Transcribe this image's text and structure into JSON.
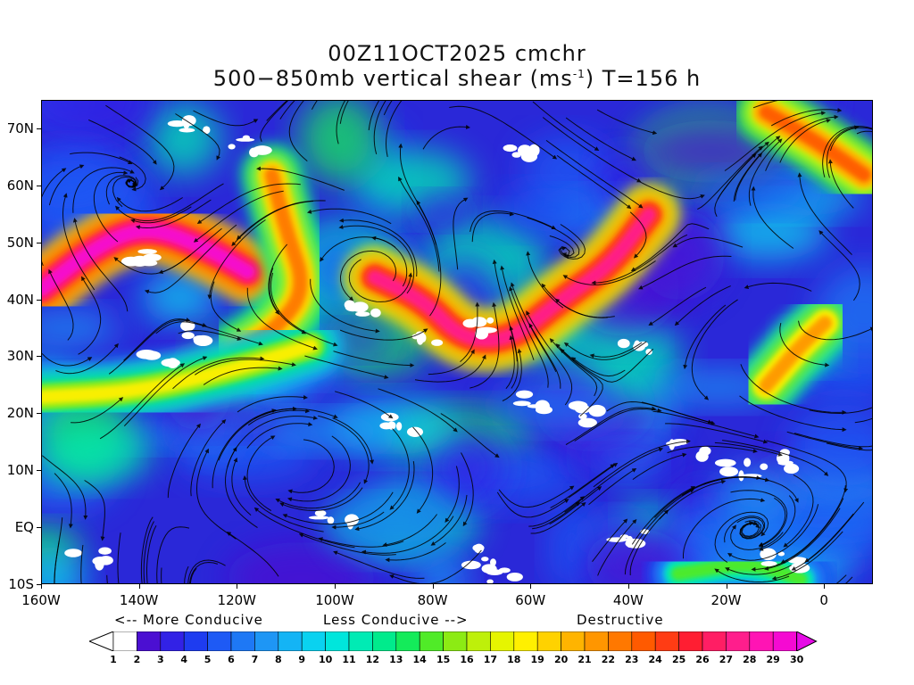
{
  "title": {
    "line1": "00Z11OCT2025 cmchr",
    "line2_pre": "500−850mb vertical shear (ms",
    "line2_sup": "-1",
    "line2_post": ") T=156 h"
  },
  "map": {
    "lon_range": [
      -160,
      10
    ],
    "lat_range": [
      -10,
      75
    ],
    "lat_ticks": [
      {
        "lat": 70,
        "label": "70N"
      },
      {
        "lat": 60,
        "label": "60N"
      },
      {
        "lat": 50,
        "label": "50N"
      },
      {
        "lat": 40,
        "label": "40N"
      },
      {
        "lat": 30,
        "label": "30N"
      },
      {
        "lat": 20,
        "label": "20N"
      },
      {
        "lat": 10,
        "label": "10N"
      },
      {
        "lat": 0,
        "label": "EQ"
      },
      {
        "lat": -10,
        "label": "10S"
      }
    ],
    "lon_ticks": [
      {
        "lon": -160,
        "label": "160W"
      },
      {
        "lon": -140,
        "label": "140W"
      },
      {
        "lon": -120,
        "label": "120W"
      },
      {
        "lon": -100,
        "label": "100W"
      },
      {
        "lon": -80,
        "label": "80W"
      },
      {
        "lon": -60,
        "label": "60W"
      },
      {
        "lon": -40,
        "label": "40W"
      },
      {
        "lon": -20,
        "label": "20W"
      },
      {
        "lon": 0,
        "label": "0"
      }
    ],
    "shear_jets": [
      {
        "name": "pacific-jet",
        "points": [
          [
            -160,
            42
          ],
          [
            -148,
            50
          ],
          [
            -138,
            53
          ],
          [
            -126,
            49
          ],
          [
            -118,
            45
          ]
        ],
        "level": 29
      },
      {
        "name": "west-coast-trough",
        "points": [
          [
            -113,
            62
          ],
          [
            -110,
            52
          ],
          [
            -106,
            42
          ],
          [
            -112,
            35
          ],
          [
            -120,
            31
          ]
        ],
        "level": 22
      },
      {
        "name": "central-jet",
        "points": [
          [
            -92,
            44
          ],
          [
            -82,
            40
          ],
          [
            -74,
            33
          ],
          [
            -64,
            33
          ],
          [
            -54,
            40
          ],
          [
            -44,
            46
          ],
          [
            -36,
            55
          ]
        ],
        "level": 27
      },
      {
        "name": "subtropical-band",
        "points": [
          [
            -160,
            23
          ],
          [
            -140,
            24
          ],
          [
            -120,
            28
          ],
          [
            -105,
            32
          ]
        ],
        "level": 18
      },
      {
        "name": "east-atlantic",
        "points": [
          [
            -12,
            25
          ],
          [
            -5,
            32
          ],
          [
            0,
            36
          ]
        ],
        "level": 21
      },
      {
        "name": "arctic-northeast",
        "points": [
          [
            -12,
            73
          ],
          [
            -2,
            68
          ],
          [
            8,
            62
          ]
        ],
        "level": 23
      },
      {
        "name": "tropical-east-atlantic",
        "points": [
          [
            -30,
            -8
          ],
          [
            -15,
            -6
          ],
          [
            -5,
            -9
          ]
        ],
        "level": 14
      }
    ],
    "white_patches": [
      [
        -140,
        48
      ],
      [
        -128,
        34
      ],
      [
        -95,
        38
      ],
      [
        -82,
        33
      ],
      [
        -72,
        35
      ],
      [
        -60,
        22
      ],
      [
        -50,
        20
      ],
      [
        -38,
        32
      ],
      [
        -28,
        14
      ],
      [
        -18,
        10
      ],
      [
        -10,
        12
      ],
      [
        -130,
        70
      ],
      [
        -118,
        67
      ],
      [
        -62,
        66
      ],
      [
        -150,
        -5
      ],
      [
        -100,
        2
      ],
      [
        -70,
        -5
      ],
      [
        -65,
        -8
      ],
      [
        -40,
        -2
      ],
      [
        -135,
        30
      ],
      [
        -86,
        18
      ],
      [
        -8,
        -6
      ]
    ]
  },
  "legend": {
    "more": "<-- More Conducive",
    "less": "Less Conducive -->",
    "destructive": "Destructive",
    "levels": [
      1,
      2,
      3,
      4,
      5,
      6,
      7,
      8,
      9,
      10,
      11,
      12,
      13,
      14,
      15,
      16,
      17,
      18,
      19,
      20,
      21,
      22,
      23,
      24,
      25,
      26,
      27,
      28,
      29,
      30
    ],
    "colors": [
      "#ffffff",
      "#4b0fd2",
      "#3222e6",
      "#1e3cf0",
      "#1e5af5",
      "#1e78f5",
      "#1e96f5",
      "#14b4f5",
      "#0ad2f0",
      "#00e6dc",
      "#00ebb4",
      "#00eb8c",
      "#14eb5a",
      "#50eb28",
      "#8ceb14",
      "#bef00a",
      "#e6f500",
      "#fff000",
      "#ffd200",
      "#ffb400",
      "#ff9600",
      "#ff7800",
      "#ff5a00",
      "#ff3c14",
      "#ff1e32",
      "#ff1e64",
      "#ff1e8c",
      "#ff14b4",
      "#f50ad2",
      "#e60ae6"
    ]
  }
}
